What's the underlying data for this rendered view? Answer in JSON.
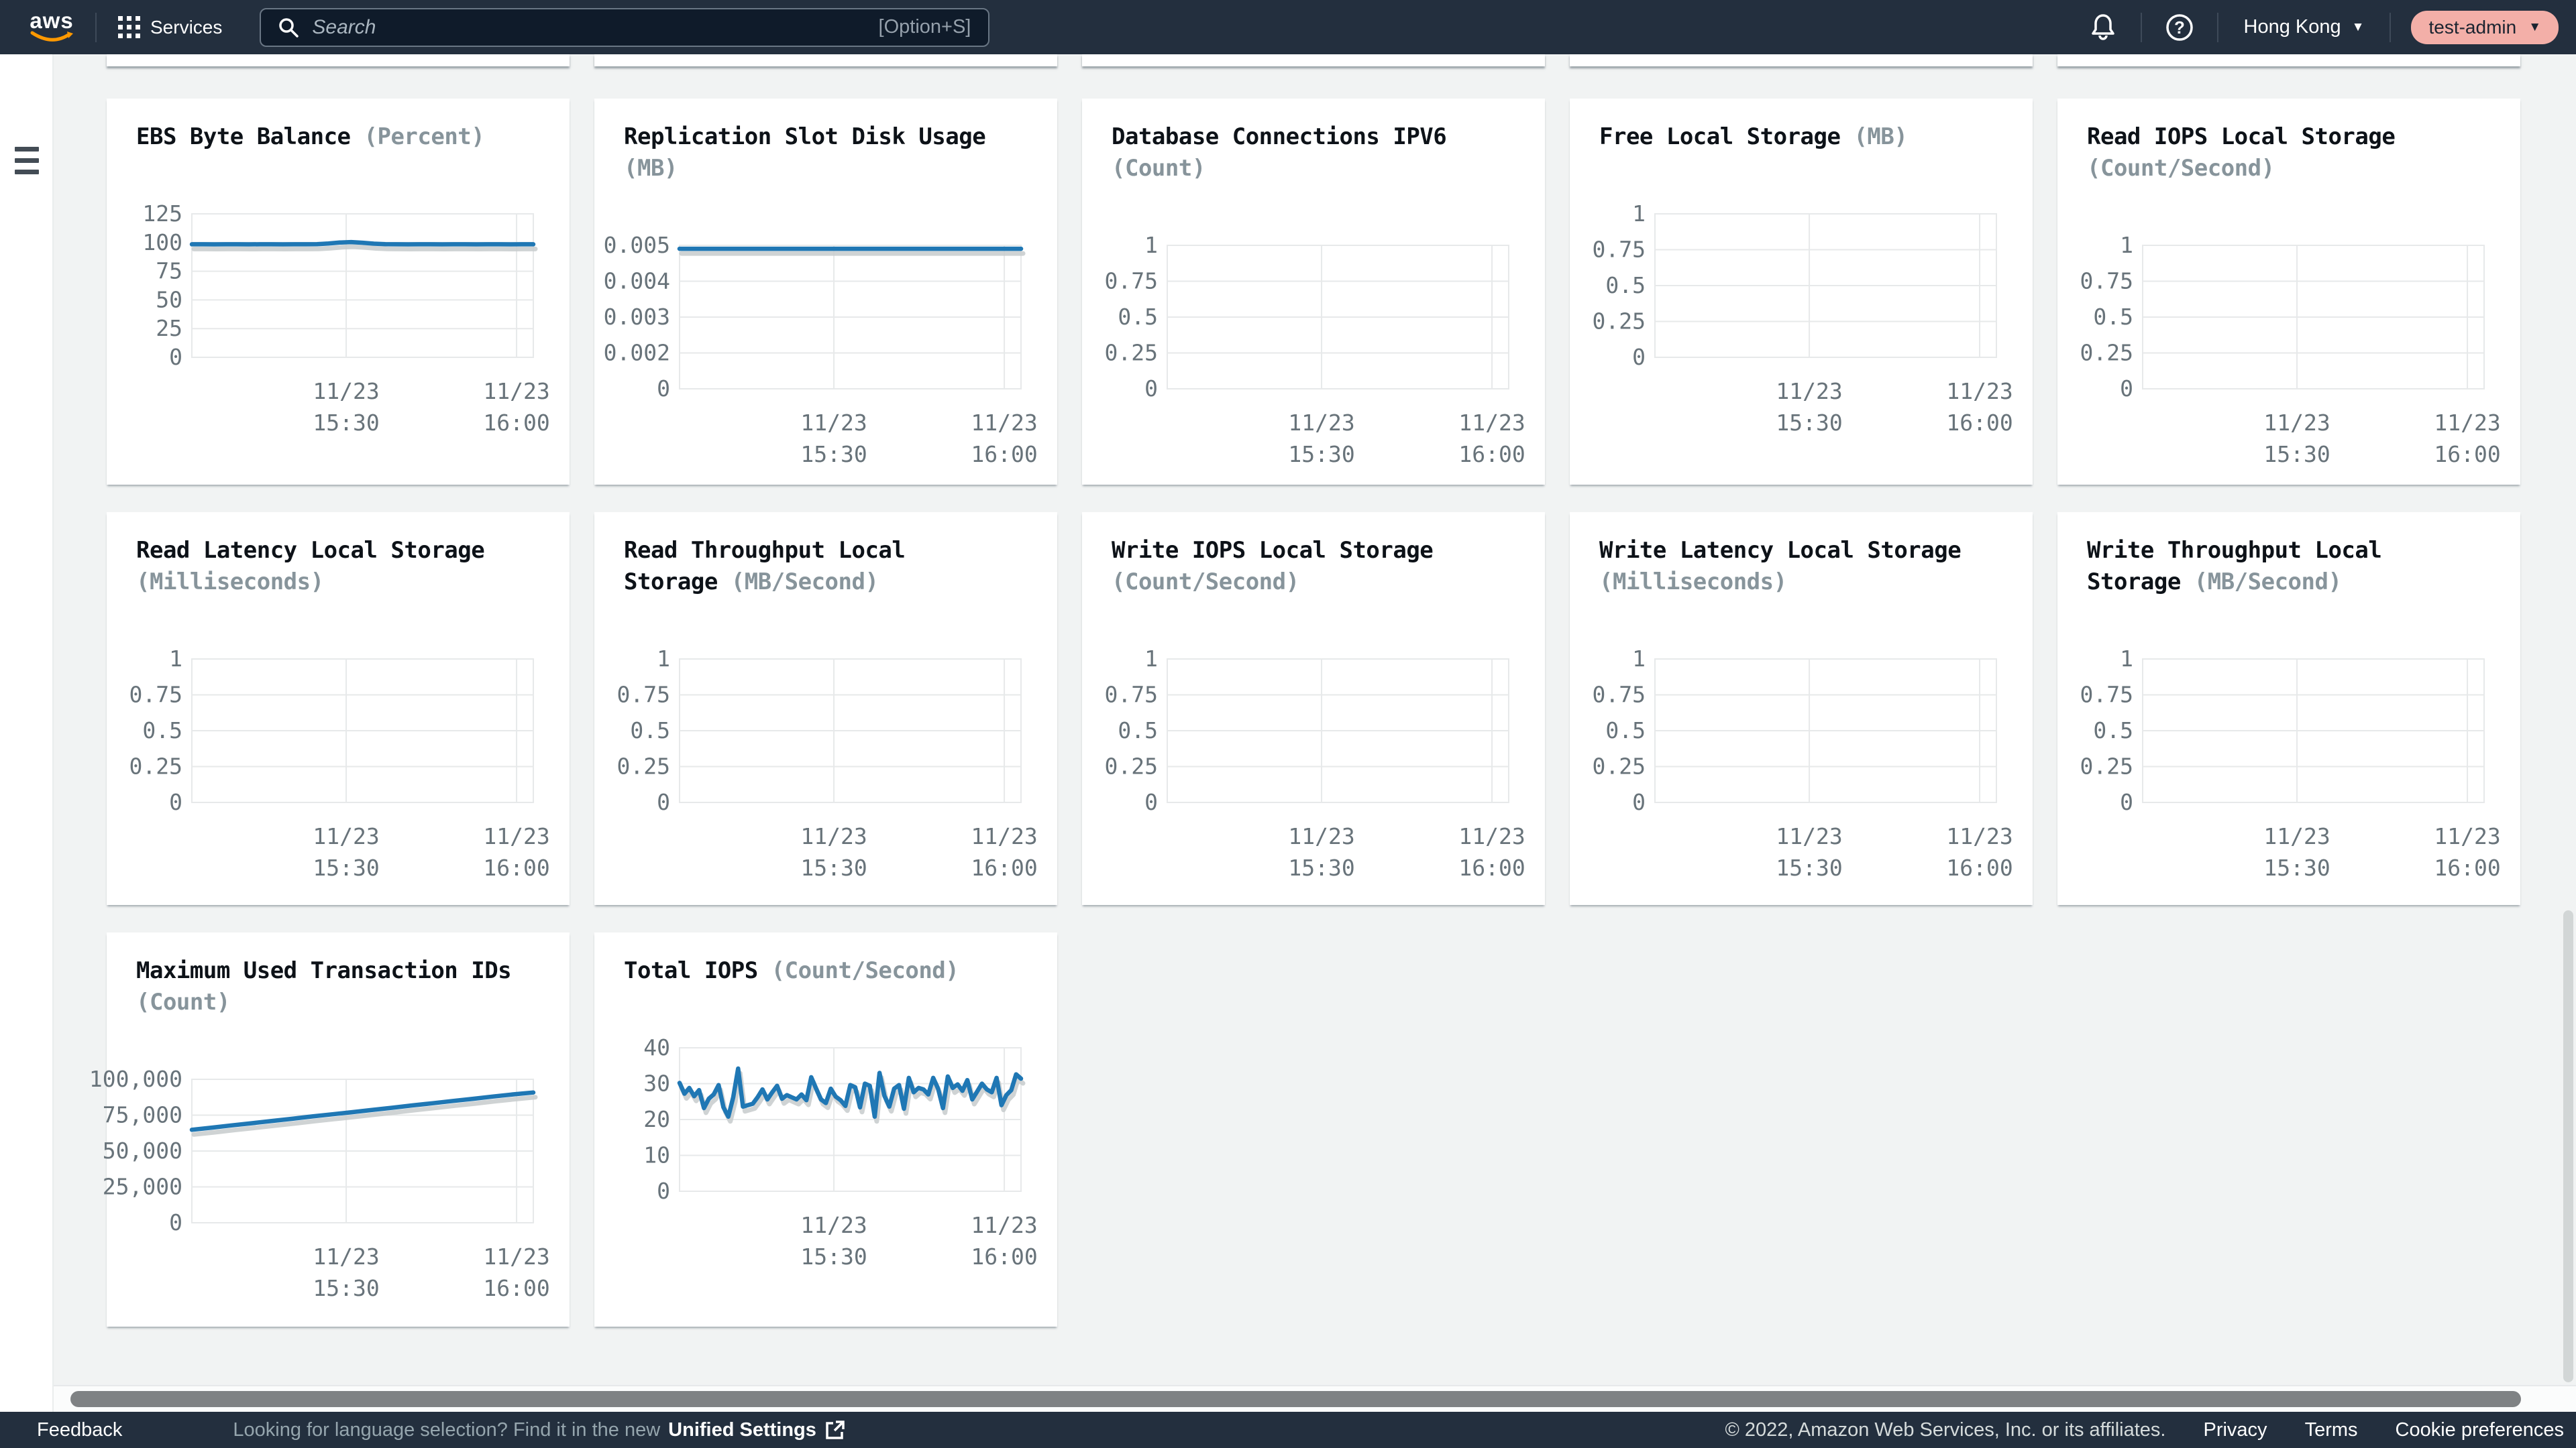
{
  "topbar": {
    "brand": "aws",
    "services_label": "Services",
    "search_placeholder": "Search",
    "search_shortcut": "[Option+S]",
    "region": "Hong Kong",
    "user": "test-admin"
  },
  "footer": {
    "feedback": "Feedback",
    "language_prompt": "Looking for language selection? Find it in the new",
    "language_link": "Unified Settings",
    "copyright": "© 2022, Amazon Web Services, Inc. or its affiliates.",
    "privacy": "Privacy",
    "terms": "Terms",
    "cookie": "Cookie preferences"
  },
  "colors": {
    "line_blue": "#1f77b4",
    "line_shadow": "#c7cbcc",
    "grid": "#e7e9ea",
    "axis_text": "#68737a",
    "title_text": "#0d1218",
    "unit_text": "#87949b",
    "topbar_bg": "#232f3e",
    "page_bg": "#f1f3f3",
    "user_badge_bg": "#f3afa8"
  },
  "chart_data": [
    {
      "type": "line",
      "title": "EBS Byte Balance",
      "title2": "",
      "unit": "(Percent)",
      "unit_line": 1,
      "col": 0,
      "row": 0,
      "y_ticks": [
        "125",
        "100",
        "75",
        "50",
        "25",
        "0"
      ],
      "y_max": 125,
      "x_ticks": [
        [
          "11/23",
          "15:30"
        ],
        [
          "11/23",
          "16:00"
        ]
      ],
      "series": [
        98.5,
        98.5,
        98.4,
        98.5,
        98.5,
        98.4,
        98.5,
        98.5,
        98.4,
        98.5,
        98.5,
        98.6,
        99.2,
        100.0,
        100.4,
        99.8,
        99.0,
        98.6,
        98.5,
        98.4,
        98.5,
        98.5,
        98.4,
        98.5,
        98.5,
        98.4,
        98.5,
        98.5,
        98.4,
        98.5,
        98.5
      ]
    },
    {
      "type": "line",
      "title": "Replication Slot Disk Usage",
      "title2": "",
      "unit": "(MB)",
      "unit_line": 2,
      "col": 1,
      "row": 0,
      "y_ticks": [
        "0.005",
        "0.004",
        "0.003",
        "0.002",
        "0"
      ],
      "y_max": 0.005,
      "x_ticks": [
        [
          "11/23",
          "15:30"
        ],
        [
          "11/23",
          "16:00"
        ]
      ],
      "series": [
        0.00488,
        0.00488,
        0.00488,
        0.00488,
        0.00488,
        0.00488,
        0.00488,
        0.00488,
        0.00488,
        0.00488,
        0.00488,
        0.00488,
        0.00488,
        0.00488,
        0.00488,
        0.00488,
        0.00488,
        0.00488,
        0.00488,
        0.00488
      ]
    },
    {
      "type": "line",
      "title": "Database Connections IPV6",
      "title2": "",
      "unit": "(Count)",
      "unit_line": 2,
      "col": 2,
      "row": 0,
      "y_ticks": [
        "1",
        "0.75",
        "0.5",
        "0.25",
        "0"
      ],
      "y_max": 1,
      "x_ticks": [
        [
          "11/23",
          "15:30"
        ],
        [
          "11/23",
          "16:00"
        ]
      ],
      "series": null
    },
    {
      "type": "line",
      "title": "Free Local Storage",
      "title2": "",
      "unit": "(MB)",
      "unit_line": 1,
      "col": 3,
      "row": 0,
      "y_ticks": [
        "1",
        "0.75",
        "0.5",
        "0.25",
        "0"
      ],
      "y_max": 1,
      "x_ticks": [
        [
          "11/23",
          "15:30"
        ],
        [
          "11/23",
          "16:00"
        ]
      ],
      "series": null
    },
    {
      "type": "line",
      "title": "Read IOPS Local Storage",
      "title2": "",
      "unit": "(Count/Second)",
      "unit_line": 2,
      "col": 4,
      "row": 0,
      "y_ticks": [
        "1",
        "0.75",
        "0.5",
        "0.25",
        "0"
      ],
      "y_max": 1,
      "x_ticks": [
        [
          "11/23",
          "15:30"
        ],
        [
          "11/23",
          "16:00"
        ]
      ],
      "series": null
    },
    {
      "type": "line",
      "title": "Read Latency Local Storage",
      "title2": "",
      "unit": "(Milliseconds)",
      "unit_line": 2,
      "col": 0,
      "row": 1,
      "y_ticks": [
        "1",
        "0.75",
        "0.5",
        "0.25",
        "0"
      ],
      "y_max": 1,
      "x_ticks": [
        [
          "11/23",
          "15:30"
        ],
        [
          "11/23",
          "16:00"
        ]
      ],
      "series": null
    },
    {
      "type": "line",
      "title": "Read Throughput Local",
      "title2": "Storage",
      "unit": "(MB/Second)",
      "unit_line": 2,
      "col": 1,
      "row": 1,
      "y_ticks": [
        "1",
        "0.75",
        "0.5",
        "0.25",
        "0"
      ],
      "y_max": 1,
      "x_ticks": [
        [
          "11/23",
          "15:30"
        ],
        [
          "11/23",
          "16:00"
        ]
      ],
      "series": null
    },
    {
      "type": "line",
      "title": "Write IOPS Local Storage",
      "title2": "",
      "unit": "(Count/Second)",
      "unit_line": 2,
      "col": 2,
      "row": 1,
      "y_ticks": [
        "1",
        "0.75",
        "0.5",
        "0.25",
        "0"
      ],
      "y_max": 1,
      "x_ticks": [
        [
          "11/23",
          "15:30"
        ],
        [
          "11/23",
          "16:00"
        ]
      ],
      "series": null
    },
    {
      "type": "line",
      "title": "Write Latency Local Storage",
      "title2": "",
      "unit": "(Milliseconds)",
      "unit_line": 2,
      "col": 3,
      "row": 1,
      "y_ticks": [
        "1",
        "0.75",
        "0.5",
        "0.25",
        "0"
      ],
      "y_max": 1,
      "x_ticks": [
        [
          "11/23",
          "15:30"
        ],
        [
          "11/23",
          "16:00"
        ]
      ],
      "series": null
    },
    {
      "type": "line",
      "title": "Write Throughput Local",
      "title2": "Storage",
      "unit": "(MB/Second)",
      "unit_line": 2,
      "col": 4,
      "row": 1,
      "y_ticks": [
        "1",
        "0.75",
        "0.5",
        "0.25",
        "0"
      ],
      "y_max": 1,
      "x_ticks": [
        [
          "11/23",
          "15:30"
        ],
        [
          "11/23",
          "16:00"
        ]
      ],
      "series": null
    },
    {
      "type": "line",
      "title": "Maximum Used Transaction IDs",
      "title2": "",
      "unit": "(Count)",
      "unit_line": 2,
      "col": 0,
      "row": 2,
      "y_ticks": [
        "100,000",
        "75,000",
        "50,000",
        "25,000",
        "0"
      ],
      "y_max": 100000,
      "x_ticks": [
        [
          "11/23",
          "15:30"
        ],
        [
          "11/23",
          "16:00"
        ]
      ],
      "series": [
        64800,
        66300,
        67900,
        69400,
        71000,
        72500,
        74100,
        75600,
        77100,
        78700,
        80200,
        81800,
        83300,
        84900,
        86400,
        88000,
        89500,
        90800
      ]
    },
    {
      "type": "line",
      "title": "Total IOPS",
      "title2": "",
      "unit": "(Count/Second)",
      "unit_line": 1,
      "col": 1,
      "row": 2,
      "y_ticks": [
        "40",
        "30",
        "20",
        "10",
        "0"
      ],
      "y_max": 40,
      "x_ticks": [
        [
          "11/23",
          "15:30"
        ],
        [
          "11/23",
          "16:00"
        ]
      ],
      "series": [
        30.2,
        27.2,
        28.8,
        26.5,
        28.2,
        23.2,
        25.8,
        27.0,
        29.6,
        23.4,
        20.8,
        26.2,
        34.2,
        23.6,
        24.0,
        24.4,
        26.2,
        28.4,
        25.6,
        27.6,
        29.4,
        25.8,
        26.8,
        26.2,
        25.6,
        27.0,
        25.4,
        31.8,
        28.6,
        25.6,
        24.6,
        28.6,
        26.4,
        25.4,
        23.8,
        29.6,
        29.0,
        23.4,
        30.0,
        29.4,
        20.8,
        33.0,
        26.6,
        23.6,
        28.6,
        29.6,
        23.0,
        31.6,
        27.6,
        28.8,
        28.4,
        27.0,
        31.6,
        28.6,
        23.2,
        32.0,
        28.8,
        29.8,
        28.0,
        31.0,
        25.6,
        27.8,
        30.0,
        28.4,
        27.6,
        31.6,
        24.0,
        26.8,
        28.2,
        32.6,
        31.4
      ]
    }
  ]
}
